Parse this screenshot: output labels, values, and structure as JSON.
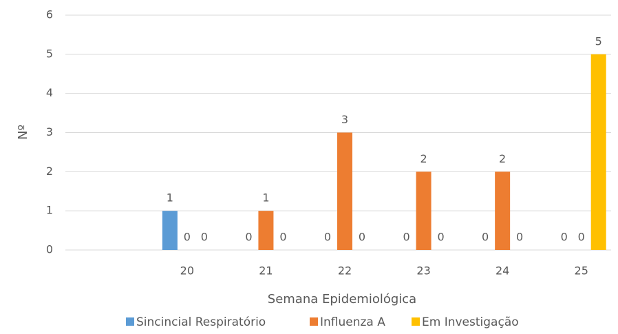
{
  "chart_data": {
    "type": "bar",
    "x_label": "Semana Epidemiológica",
    "y_label": "Nº",
    "categories": [
      null,
      "20",
      "21",
      "22",
      "23",
      "24",
      "25"
    ],
    "series": [
      {
        "name": "Sincincial Respiratório",
        "color": "#5b9bd5",
        "values": [
          null,
          1,
          0,
          0,
          0,
          0,
          0
        ]
      },
      {
        "name": "Influenza A",
        "color": "#ed7d31",
        "values": [
          null,
          0,
          1,
          3,
          2,
          2,
          0
        ]
      },
      {
        "name": "Em Investigação",
        "color": "#ffc000",
        "values": [
          null,
          0,
          0,
          0,
          0,
          0,
          5
        ]
      }
    ],
    "ylim": [
      0,
      6
    ],
    "yticks": [
      0,
      1,
      2,
      3,
      4,
      5,
      6
    ],
    "grid": true,
    "legend": "bottom"
  }
}
